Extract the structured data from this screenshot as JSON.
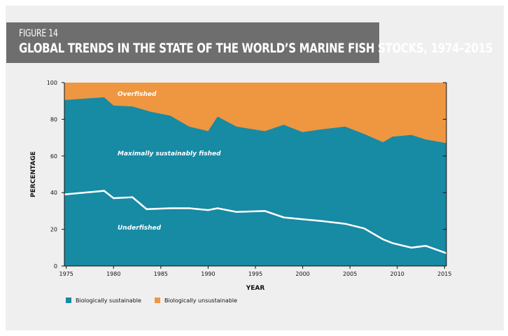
{
  "figure": {
    "number": "FIGURE 14",
    "title": "GLOBAL TRENDS IN THE STATE OF THE WORLD’S MARINE FISH STOCKS, 1974–2015"
  },
  "colors": {
    "sustainable": "#178aa4",
    "unsustainable": "#ef9641",
    "line": "#ffffff",
    "header_bg": "#6e6e6e",
    "panel_bg": "#efefef"
  },
  "chart_data": {
    "type": "area",
    "xlabel": "YEAR",
    "ylabel": "PERCENTAGE",
    "xlim": [
      1974.8,
      2015.2
    ],
    "ylim": [
      0,
      100
    ],
    "xticks": [
      1975,
      1980,
      1985,
      1990,
      1995,
      2000,
      2005,
      2010,
      2015
    ],
    "yticks": [
      0,
      20,
      40,
      60,
      80,
      100
    ],
    "series": [
      {
        "name": "Biologically sustainable",
        "x": [
          1974.8,
          1979,
          1980,
          1982,
          1984,
          1986,
          1988,
          1990,
          1991,
          1993,
          1996,
          1998,
          2000,
          2002,
          2004.5,
          2006.5,
          2008.5,
          2009.5,
          2011.5,
          2013,
          2015.2
        ],
        "values": [
          90.5,
          92,
          87.5,
          87,
          84,
          82,
          76,
          73.5,
          81.5,
          76,
          73.5,
          77,
          73,
          74.5,
          76,
          72,
          67.5,
          70.5,
          71.5,
          69,
          67
        ]
      },
      {
        "name": "Biologically unsustainable",
        "x": [
          1974.8,
          2015.2
        ],
        "values": [
          100,
          100
        ]
      }
    ],
    "underfished_line": {
      "x": [
        1974.8,
        1979,
        1980,
        1982,
        1983.5,
        1986,
        1988,
        1990,
        1991,
        1993,
        1996,
        1998,
        2000,
        2002,
        2004.5,
        2006.5,
        2008.5,
        2009.5,
        2011.5,
        2013,
        2015.2
      ],
      "values": [
        39,
        41,
        37,
        37.5,
        31,
        31.5,
        31.5,
        30.5,
        31.5,
        29.5,
        30,
        26.5,
        25.5,
        24.5,
        23,
        20.5,
        14.5,
        12.5,
        10,
        11,
        7
      ]
    },
    "annotations": [
      "Overfished",
      "Maximally sustainably fished",
      "Underfished"
    ],
    "legend": [
      "Biologically sustainable",
      "Biologically unsustainable"
    ],
    "legend_position": "bottom-left",
    "grid": false
  }
}
